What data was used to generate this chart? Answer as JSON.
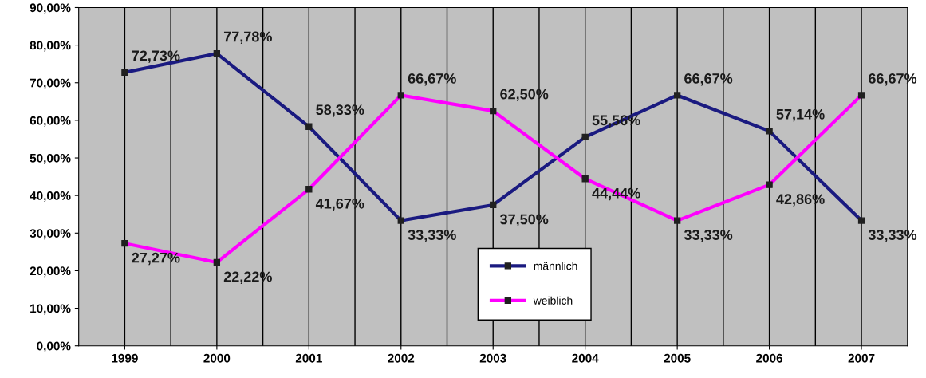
{
  "chart_data": {
    "type": "line",
    "categories": [
      "1999",
      "2000",
      "2001",
      "2002",
      "2003",
      "2004",
      "2005",
      "2006",
      "2007"
    ],
    "series": [
      {
        "name": "männlich",
        "color": "#1a1a80",
        "values": [
          72.73,
          77.78,
          58.33,
          33.33,
          37.5,
          55.56,
          66.67,
          57.14,
          33.33
        ],
        "value_labels": [
          "72,73%",
          "77,78%",
          "58,33%",
          "33,33%",
          "37,50%",
          "55,56%",
          "66,67%",
          "57,14%",
          "33,33%"
        ]
      },
      {
        "name": "weiblich",
        "color": "#ff00ff",
        "values": [
          27.27,
          22.22,
          41.67,
          66.67,
          62.5,
          44.44,
          33.33,
          42.86,
          66.67
        ],
        "value_labels": [
          "27,27%",
          "22,22%",
          "41,67%",
          "66,67%",
          "62,50%",
          "44,44%",
          "33,33%",
          "42,86%",
          "66,67%"
        ]
      }
    ],
    "ylim": [
      0,
      90
    ],
    "yticks": [
      {
        "value": 0,
        "label": "0,00%"
      },
      {
        "value": 10,
        "label": "10,00%"
      },
      {
        "value": 20,
        "label": "20,00%"
      },
      {
        "value": 30,
        "label": "30,00%"
      },
      {
        "value": 40,
        "label": "40,00%"
      },
      {
        "value": 50,
        "label": "50,00%"
      },
      {
        "value": 60,
        "label": "60,00%"
      },
      {
        "value": 70,
        "label": "70,00%"
      },
      {
        "value": 80,
        "label": "80,00%"
      },
      {
        "value": 90,
        "label": "90,00%"
      }
    ],
    "grid": "x",
    "legend": "bottom",
    "marker": "square",
    "line_style": "solid"
  }
}
